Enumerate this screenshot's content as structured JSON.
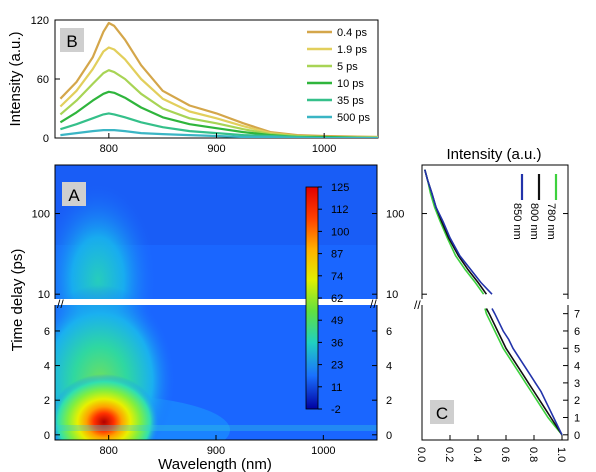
{
  "chart_data": [
    {
      "panel": "B",
      "type": "line",
      "ylabel": "Intensity (a.u.)",
      "xlim": [
        750,
        1050
      ],
      "ylim": [
        0,
        120
      ],
      "yticks": [
        0,
        60,
        120
      ],
      "xticks": [
        800,
        900,
        1000
      ],
      "series": [
        {
          "name": "0.4 ps",
          "color": "#d4a64a",
          "x": [
            755,
            770,
            785,
            795,
            800,
            805,
            815,
            830,
            850,
            875,
            900,
            925,
            950,
            975,
            1000,
            1050
          ],
          "values": [
            40,
            57,
            82,
            108,
            117,
            114,
            100,
            74,
            48,
            33,
            25,
            15,
            6,
            3,
            2,
            1
          ]
        },
        {
          "name": "1.9 ps",
          "color": "#e2cf5c",
          "x": [
            755,
            770,
            785,
            795,
            800,
            805,
            815,
            830,
            850,
            875,
            900,
            925,
            950,
            975,
            1000,
            1050
          ],
          "values": [
            32,
            48,
            70,
            88,
            92,
            90,
            80,
            60,
            40,
            27,
            20,
            12,
            5,
            2,
            1,
            1
          ]
        },
        {
          "name": "5 ps",
          "color": "#a8d455",
          "x": [
            755,
            770,
            785,
            795,
            800,
            805,
            815,
            830,
            850,
            875,
            900,
            925,
            950,
            975,
            1000,
            1050
          ],
          "values": [
            24,
            38,
            55,
            66,
            69,
            67,
            60,
            45,
            30,
            20,
            15,
            9,
            4,
            2,
            1,
            0
          ]
        },
        {
          "name": "10 ps",
          "color": "#2fb53c",
          "x": [
            755,
            770,
            785,
            795,
            800,
            805,
            815,
            830,
            850,
            875,
            900,
            925,
            950,
            975,
            1000,
            1050
          ],
          "values": [
            16,
            26,
            38,
            45,
            47,
            46,
            41,
            31,
            21,
            14,
            10,
            6,
            3,
            1,
            1,
            0
          ]
        },
        {
          "name": "35 ps",
          "color": "#35c08a",
          "x": [
            755,
            770,
            785,
            795,
            800,
            805,
            815,
            830,
            850,
            875,
            900,
            925,
            950,
            975,
            1000,
            1050
          ],
          "values": [
            9,
            14,
            20,
            24,
            25,
            24,
            21,
            16,
            11,
            7,
            5,
            3,
            2,
            1,
            0,
            0
          ]
        },
        {
          "name": "500 ps",
          "color": "#3ab5c4",
          "x": [
            755,
            770,
            785,
            795,
            800,
            805,
            815,
            830,
            850,
            875,
            900,
            925,
            950,
            975,
            1000,
            1050
          ],
          "values": [
            3,
            5,
            7,
            8,
            8,
            8,
            7,
            5,
            4,
            3,
            2,
            1,
            1,
            0,
            0,
            0
          ]
        }
      ]
    },
    {
      "panel": "A",
      "type": "heatmap",
      "xlabel": "Wavelength (nm)",
      "ylabel": "Time delay (ps)",
      "xticks": [
        800,
        900,
        1000
      ],
      "xlim": [
        750,
        1050
      ],
      "y_lower": {
        "ticks": [
          0,
          2,
          4,
          6
        ],
        "ylim": [
          -0.3,
          7.5
        ]
      },
      "y_upper": {
        "ticks": [
          10,
          100
        ],
        "ylim": [
          8,
          400
        ],
        "scale": "log"
      },
      "colorbar": {
        "ticks": [
          "125",
          "112",
          "100",
          "87",
          "74",
          "62",
          "49",
          "36",
          "23",
          "11",
          "-2"
        ],
        "range": [
          -2,
          125
        ]
      }
    },
    {
      "panel": "C",
      "type": "line",
      "xlabel": "Intensity (a.u.)",
      "xlim": [
        0,
        1.0
      ],
      "xticks": [
        "0.0",
        "0.2",
        "0.4",
        "0.6",
        "0.8",
        "1.0"
      ],
      "y_lower_ticks": [
        0,
        1,
        2,
        3,
        4,
        5,
        6,
        7
      ],
      "y_upper_ticks": [
        10,
        100
      ],
      "series": [
        {
          "name": "780 nm",
          "color": "#3dd13d",
          "lower": {
            "t": [
              0,
              0.5,
              1,
              1.5,
              2,
              2.5,
              3,
              3.5,
              4,
              4.5,
              5,
              5.5,
              6,
              6.5,
              7,
              7.3
            ],
            "i": [
              1.0,
              0.95,
              0.9,
              0.86,
              0.82,
              0.78,
              0.74,
              0.7,
              0.66,
              0.62,
              0.58,
              0.55,
              0.52,
              0.49,
              0.46,
              0.45
            ]
          },
          "upper": {
            "t": [
              10,
              14,
              20,
              30,
              50,
              80,
              120,
              180,
              260,
              350
            ],
            "i": [
              0.44,
              0.38,
              0.31,
              0.24,
              0.18,
              0.13,
              0.09,
              0.06,
              0.04,
              0.02
            ]
          }
        },
        {
          "name": "800 nm",
          "color": "#111111",
          "lower": {
            "t": [
              0,
              0.5,
              1,
              1.5,
              2,
              2.5,
              3,
              3.5,
              4,
              4.5,
              5,
              5.5,
              6,
              6.5,
              7,
              7.3
            ],
            "i": [
              1.0,
              0.96,
              0.92,
              0.88,
              0.84,
              0.8,
              0.76,
              0.72,
              0.68,
              0.64,
              0.6,
              0.57,
              0.54,
              0.51,
              0.48,
              0.46
            ]
          },
          "upper": {
            "t": [
              10,
              14,
              20,
              30,
              50,
              80,
              120,
              180,
              260,
              350
            ],
            "i": [
              0.46,
              0.4,
              0.33,
              0.26,
              0.19,
              0.14,
              0.1,
              0.07,
              0.04,
              0.02
            ]
          }
        },
        {
          "name": "850 nm",
          "color": "#2233aa",
          "lower": {
            "t": [
              0,
              0.5,
              1,
              1.5,
              2,
              2.5,
              3,
              3.5,
              4,
              4.5,
              5,
              5.5,
              6,
              6.5,
              7,
              7.3
            ],
            "i": [
              1.0,
              0.97,
              0.94,
              0.91,
              0.88,
              0.85,
              0.81,
              0.77,
              0.73,
              0.69,
              0.65,
              0.62,
              0.58,
              0.55,
              0.52,
              0.5
            ]
          },
          "upper": {
            "t": [
              10,
              14,
              20,
              30,
              50,
              80,
              120,
              180,
              260,
              350
            ],
            "i": [
              0.5,
              0.42,
              0.35,
              0.27,
              0.2,
              0.15,
              0.1,
              0.07,
              0.04,
              0.02
            ]
          }
        }
      ]
    }
  ],
  "labels": {
    "panel_b": "B",
    "panel_a": "A",
    "panel_c": "C"
  }
}
